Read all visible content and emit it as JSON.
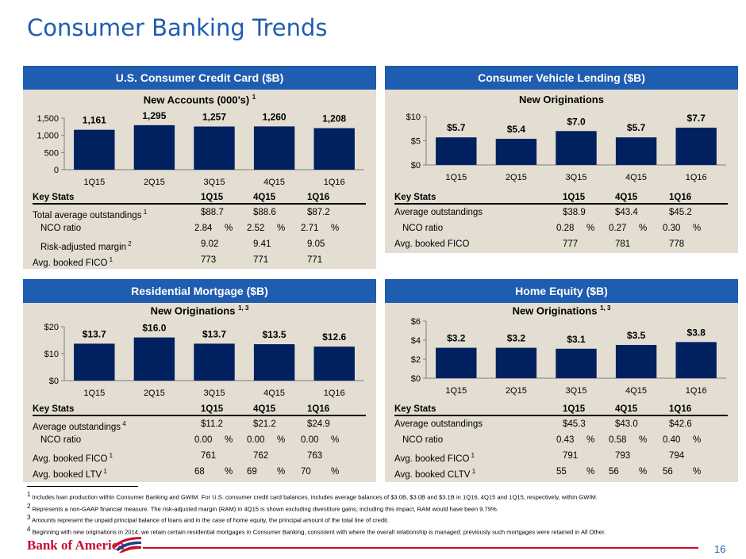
{
  "page_title": "Consumer Banking Trends",
  "page_number": "16",
  "logo_text": "Bank of America",
  "colors": {
    "header_blue": "#1F5DB0",
    "bar_navy": "#002060",
    "panel_bg": "#E3DED1",
    "brand_red": "#C4102E"
  },
  "panels": [
    {
      "header": "U.S. Consumer Credit Card ($B)",
      "chart_title": "New Accounts (000’s)",
      "chart_title_sup": "1",
      "stats": {
        "columns": [
          "Key Stats",
          "1Q15",
          "4Q15",
          "1Q16"
        ],
        "rows": [
          {
            "label": "Total average outstandings",
            "sup": "1",
            "values": [
              "$88.7",
              "$88.6",
              "$87.2"
            ],
            "pct": false,
            "indent": false
          },
          {
            "label": "NCO ratio",
            "sup": "",
            "values": [
              "2.84",
              "2.52",
              "2.71"
            ],
            "pct": true,
            "indent": true
          },
          {
            "label": "Risk-adjusted margin",
            "sup": "2",
            "values": [
              "9.02",
              "9.41",
              "9.05"
            ],
            "pct": false,
            "indent": true
          },
          {
            "label": "Avg. booked FICO",
            "sup": "1",
            "values": [
              "773",
              "771",
              "771"
            ],
            "pct": false,
            "indent": false
          }
        ]
      }
    },
    {
      "header": "Consumer Vehicle Lending ($B)",
      "chart_title": "New Originations",
      "chart_title_sup": "",
      "stats": {
        "columns": [
          "Key Stats",
          "1Q15",
          "4Q15",
          "1Q16"
        ],
        "rows": [
          {
            "label": "Average outstandings",
            "sup": "",
            "values": [
              "$38.9",
              "$43.4",
              "$45.2"
            ],
            "pct": false,
            "indent": false
          },
          {
            "label": "NCO ratio",
            "sup": "",
            "values": [
              "0.28",
              "0.27",
              "0.30"
            ],
            "pct": true,
            "indent": true
          },
          {
            "label": "Avg. booked FICO",
            "sup": "",
            "values": [
              "777",
              "781",
              "778"
            ],
            "pct": false,
            "indent": false
          }
        ]
      }
    },
    {
      "header": "Residential Mortgage ($B)",
      "chart_title": "New Originations",
      "chart_title_sup": "1, 3",
      "stats": {
        "columns": [
          "Key Stats",
          "1Q15",
          "4Q15",
          "1Q16"
        ],
        "rows": [
          {
            "label": "Average outstandings",
            "sup": "4",
            "values": [
              "$11.2",
              "$21.2",
              "$24.9"
            ],
            "pct": false,
            "indent": false
          },
          {
            "label": "NCO ratio",
            "sup": "",
            "values": [
              "0.00",
              "0.00",
              "0.00"
            ],
            "pct": true,
            "indent": true
          },
          {
            "label": "Avg. booked FICO",
            "sup": "1",
            "values": [
              "761",
              "762",
              "763"
            ],
            "pct": false,
            "indent": false
          },
          {
            "label": "Avg. booked LTV",
            "sup": "1",
            "values": [
              "68",
              "69",
              "70"
            ],
            "pct": true,
            "indent": false
          }
        ]
      }
    },
    {
      "header": "Home Equity ($B)",
      "chart_title": "New Originations",
      "chart_title_sup": "1, 3",
      "stats": {
        "columns": [
          "Key Stats",
          "1Q15",
          "4Q15",
          "1Q16"
        ],
        "rows": [
          {
            "label": "Average outstandings",
            "sup": "",
            "values": [
              "$45.3",
              "$43.0",
              "$42.6"
            ],
            "pct": false,
            "indent": false
          },
          {
            "label": "NCO ratio",
            "sup": "",
            "values": [
              "0.43",
              "0.58",
              "0.40"
            ],
            "pct": true,
            "indent": true
          },
          {
            "label": "Avg. booked FICO",
            "sup": "1",
            "values": [
              "791",
              "793",
              "794"
            ],
            "pct": false,
            "indent": false
          },
          {
            "label": "Avg. booked CLTV",
            "sup": "1",
            "values": [
              "55",
              "56",
              "56"
            ],
            "pct": true,
            "indent": false
          }
        ]
      }
    }
  ],
  "chart_data": [
    {
      "type": "bar",
      "title": "New Accounts (000’s)",
      "categories": [
        "1Q15",
        "2Q15",
        "3Q15",
        "4Q15",
        "1Q16"
      ],
      "values": [
        1161,
        1295,
        1257,
        1260,
        1208
      ],
      "value_labels": [
        "1,161",
        "1,295",
        "1,257",
        "1,260",
        "1,208"
      ],
      "yticks": [
        "0",
        "500",
        "1,000",
        "1,500"
      ],
      "ylim": [
        0,
        1500
      ]
    },
    {
      "type": "bar",
      "title": "New Originations",
      "categories": [
        "1Q15",
        "2Q15",
        "3Q15",
        "4Q15",
        "1Q16"
      ],
      "values": [
        5.7,
        5.4,
        7.0,
        5.7,
        7.7
      ],
      "value_labels": [
        "$5.7",
        "$5.4",
        "$7.0",
        "$5.7",
        "$7.7"
      ],
      "yticks": [
        "$0",
        "$5",
        "$10"
      ],
      "ylim": [
        0,
        10
      ]
    },
    {
      "type": "bar",
      "title": "New Originations",
      "categories": [
        "1Q15",
        "2Q15",
        "3Q15",
        "4Q15",
        "1Q16"
      ],
      "values": [
        13.7,
        16.0,
        13.7,
        13.5,
        12.6
      ],
      "value_labels": [
        "$13.7",
        "$16.0",
        "$13.7",
        "$13.5",
        "$12.6"
      ],
      "yticks": [
        "$0",
        "$10",
        "$20"
      ],
      "ylim": [
        0,
        20
      ]
    },
    {
      "type": "bar",
      "title": "New Originations",
      "categories": [
        "1Q15",
        "2Q15",
        "3Q15",
        "4Q15",
        "1Q16"
      ],
      "values": [
        3.2,
        3.2,
        3.1,
        3.5,
        3.8
      ],
      "value_labels": [
        "$3.2",
        "$3.2",
        "$3.1",
        "$3.5",
        "$3.8"
      ],
      "yticks": [
        "$0",
        "$2",
        "$4",
        "$6"
      ],
      "ylim": [
        0,
        6
      ]
    }
  ],
  "footnotes": [
    {
      "sup": "1",
      "text": "Includes loan production within Consumer Banking and GWIM. For U.S. consumer credit card balances, includes average balances of $3.0B, $3.0B and $3.1B in 1Q16, 4Q15 and 1Q15, respectively, within GWIM."
    },
    {
      "sup": "2",
      "text": "Represents a non-GAAP financial measure. The risk-adjusted margin (RAM) in 4Q15 is shown excluding divestiture gains; including this impact, RAM would have been 9.79%."
    },
    {
      "sup": "3",
      "text": "Amounts represent the unpaid principal balance of loans and in the case of home equity, the principal amount of the total line of credit."
    },
    {
      "sup": "4",
      "text": "Beginning with new originations in 2014, we retain certain residential mortgages in Consumer Banking, consistent with where the overall relationship is managed; previously such mortgages were retained in All Other."
    }
  ],
  "pct_sign": "%"
}
